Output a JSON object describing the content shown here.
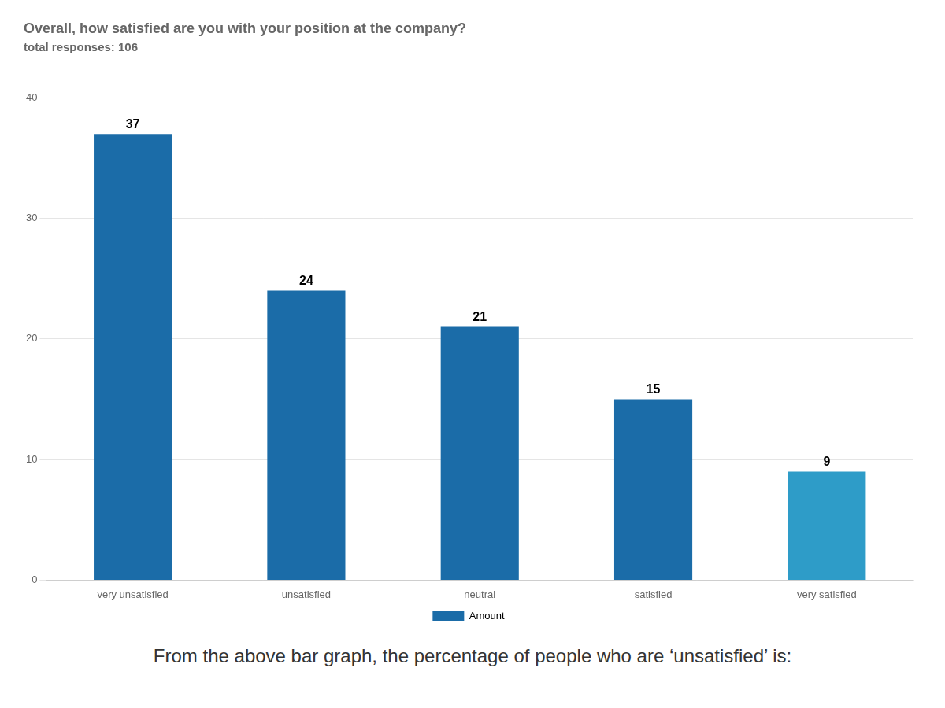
{
  "chart_data": {
    "type": "bar",
    "title": "Overall, how satisfied are you with your position at the company?",
    "subtitle": "total responses: 106",
    "categories": [
      "very unsatisfied",
      "unsatisfied",
      "neutral",
      "satisfied",
      "very satisfied"
    ],
    "series": [
      {
        "name": "Amount",
        "color": "#1b6ca8",
        "colors": [
          "#1b6ca8",
          "#1b6ca8",
          "#1b6ca8",
          "#1b6ca8",
          "#2e9cc8"
        ],
        "values": [
          37,
          24,
          21,
          15,
          9
        ]
      }
    ],
    "ylim": [
      0,
      42
    ],
    "yticks": [
      0,
      10,
      20,
      30,
      40
    ],
    "grid": true,
    "legend": "bottom",
    "data_labels": true,
    "annotations": [
      "From the above bar graph, the percentage of people who are ‘unsatisfied’ is:"
    ]
  }
}
